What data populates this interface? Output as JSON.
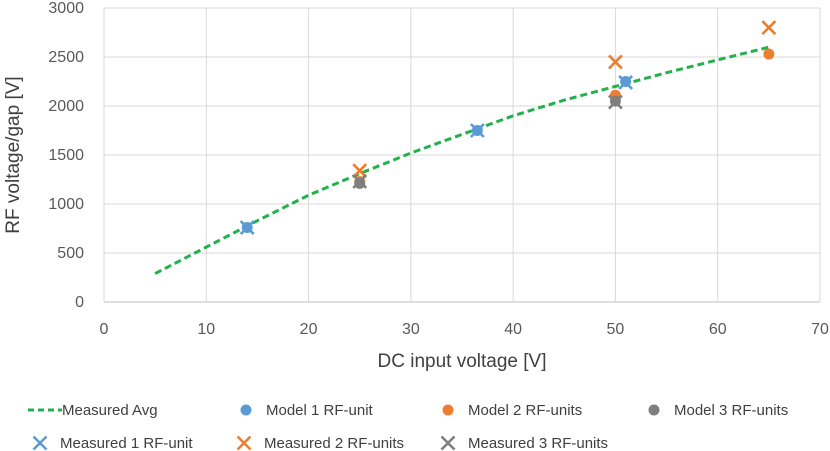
{
  "chart_data": {
    "type": "scatter",
    "title": "",
    "xlabel": "DC input voltage [V]",
    "ylabel": "RF voltage/gap [V]",
    "xlim": [
      0,
      70
    ],
    "ylim": [
      0,
      3000
    ],
    "x_ticks": [
      0,
      10,
      20,
      30,
      40,
      50,
      60,
      70
    ],
    "y_ticks": [
      0,
      500,
      1000,
      1500,
      2000,
      2500,
      3000
    ],
    "grid": true,
    "legend_position": "bottom",
    "series": [
      {
        "name": "Measured Avg",
        "kind": "dashed-line",
        "color": "#22b14c",
        "points": [
          [
            5,
            290
          ],
          [
            10,
            560
          ],
          [
            15,
            830
          ],
          [
            20,
            1090
          ],
          [
            25,
            1310
          ],
          [
            30,
            1520
          ],
          [
            35,
            1710
          ],
          [
            40,
            1900
          ],
          [
            45,
            2060
          ],
          [
            50,
            2200
          ],
          [
            55,
            2340
          ],
          [
            60,
            2470
          ],
          [
            65,
            2600
          ]
        ]
      },
      {
        "name": "Model 1 RF-unit",
        "kind": "circle",
        "color": "#5b9bd5",
        "points": [
          [
            14,
            760
          ],
          [
            36.5,
            1750
          ],
          [
            51,
            2250
          ]
        ]
      },
      {
        "name": "Model 2 RF-units",
        "kind": "circle",
        "color": "#ed7d31",
        "points": [
          [
            25,
            1230
          ],
          [
            50,
            2110
          ],
          [
            65,
            2530
          ]
        ]
      },
      {
        "name": "Model 3 RF-units",
        "kind": "circle",
        "color": "#7f7f7f",
        "points": [
          [
            25,
            1210
          ],
          [
            50,
            2050
          ]
        ]
      },
      {
        "name": "Measured 1 RF-unit",
        "kind": "x",
        "color": "#5b9bd5",
        "points": [
          [
            14,
            760
          ],
          [
            36.5,
            1750
          ],
          [
            51,
            2240
          ]
        ]
      },
      {
        "name": "Measured 2 RF-units",
        "kind": "x",
        "color": "#ed7d31",
        "points": [
          [
            25,
            1340
          ],
          [
            50,
            2450
          ],
          [
            65,
            2800
          ]
        ]
      },
      {
        "name": "Measured 3 RF-units",
        "kind": "x",
        "color": "#7f7f7f",
        "points": [
          [
            25,
            1230
          ],
          [
            50,
            2040
          ]
        ]
      }
    ]
  }
}
